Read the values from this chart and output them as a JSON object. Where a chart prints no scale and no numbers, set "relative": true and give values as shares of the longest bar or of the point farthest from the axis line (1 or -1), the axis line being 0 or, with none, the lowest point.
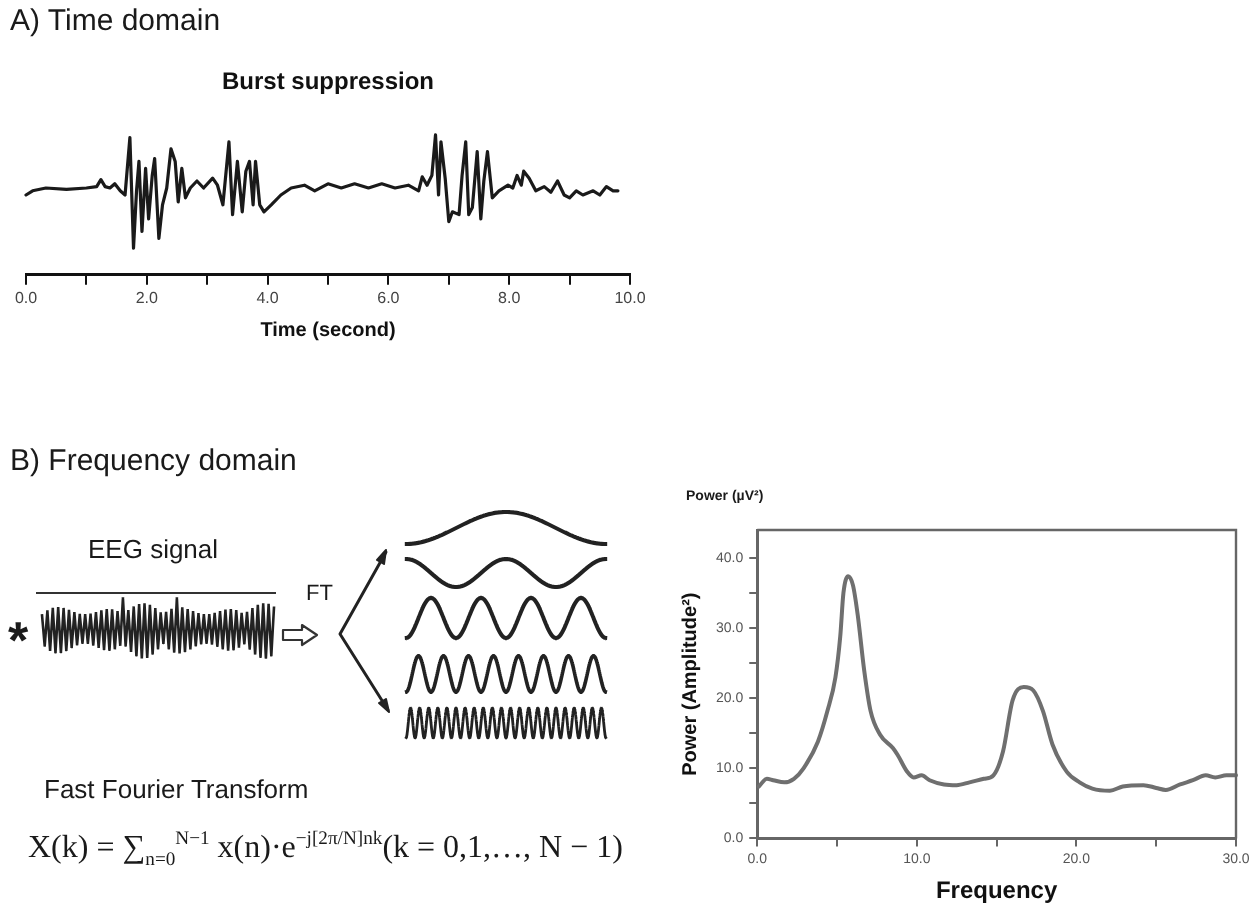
{
  "chart_data": [
    {
      "type": "line",
      "title": "Burst suppression",
      "xlabel": "Time (second)",
      "annotations": [
        "A) Time domain"
      ],
      "relative": true,
      "color": "#1a1a1a",
      "x": [
        0.0,
        0.11,
        0.33,
        0.67,
        1.0,
        1.17,
        1.24,
        1.31,
        1.39,
        1.47,
        1.56,
        1.64,
        1.72,
        1.78,
        1.83,
        1.87,
        1.92,
        1.98,
        2.03,
        2.09,
        2.13,
        2.2,
        2.26,
        2.33,
        2.4,
        2.47,
        2.52,
        2.58,
        2.64,
        2.72,
        2.83,
        2.94,
        3.09,
        3.17,
        3.26,
        3.36,
        3.42,
        3.5,
        3.58,
        3.64,
        3.7,
        3.76,
        3.8,
        3.87,
        3.94,
        4.06,
        4.22,
        4.39,
        4.61,
        4.78,
        5.0,
        5.22,
        5.44,
        5.67,
        5.89,
        6.11,
        6.33,
        6.5,
        6.56,
        6.64,
        6.72,
        6.78,
        6.83,
        6.87,
        6.94,
        7.0,
        7.06,
        7.17,
        7.22,
        7.28,
        7.33,
        7.39,
        7.47,
        7.53,
        7.58,
        7.64,
        7.72,
        7.83,
        7.98,
        8.06,
        8.13,
        8.2,
        8.24,
        8.33,
        8.44,
        8.58,
        8.69,
        8.8,
        8.91,
        9.0,
        9.11,
        9.22,
        9.39,
        9.5,
        9.61,
        9.72,
        9.8
      ],
      "values": [
        0.57,
        0.6,
        0.62,
        0.61,
        0.62,
        0.63,
        0.68,
        0.63,
        0.62,
        0.65,
        0.6,
        0.57,
        0.98,
        0.19,
        0.6,
        0.81,
        0.31,
        0.76,
        0.4,
        0.71,
        0.83,
        0.26,
        0.5,
        0.62,
        0.9,
        0.81,
        0.52,
        0.76,
        0.55,
        0.62,
        0.67,
        0.62,
        0.69,
        0.64,
        0.5,
        0.95,
        0.43,
        0.81,
        0.45,
        0.74,
        0.81,
        0.5,
        0.81,
        0.5,
        0.45,
        0.5,
        0.57,
        0.62,
        0.64,
        0.6,
        0.65,
        0.62,
        0.65,
        0.62,
        0.65,
        0.62,
        0.64,
        0.6,
        0.7,
        0.64,
        0.71,
        1.0,
        0.57,
        0.95,
        0.69,
        0.38,
        0.45,
        0.43,
        0.71,
        0.95,
        0.43,
        0.48,
        0.88,
        0.4,
        0.67,
        0.88,
        0.55,
        0.6,
        0.64,
        0.62,
        0.71,
        0.64,
        0.74,
        0.69,
        0.6,
        0.63,
        0.59,
        0.67,
        0.57,
        0.55,
        0.6,
        0.57,
        0.6,
        0.57,
        0.63,
        0.6,
        0.6
      ],
      "xlim": [
        0,
        10
      ],
      "xticks": [
        {
          "value": 0,
          "label": "0.0"
        },
        {
          "value": 1,
          "label": null
        },
        {
          "value": 2,
          "label": "2.0"
        },
        {
          "value": 3,
          "label": null
        },
        {
          "value": 4,
          "label": "4.0"
        },
        {
          "value": 5,
          "label": null
        },
        {
          "value": 6,
          "label": "6.0"
        },
        {
          "value": 7,
          "label": null
        },
        {
          "value": 8,
          "label": "8.0"
        },
        {
          "value": 9,
          "label": null
        },
        {
          "value": 10,
          "label": "10.0"
        }
      ]
    },
    {
      "type": "other",
      "annotations": [
        "B) Frequency domain",
        "EEG signal",
        "*",
        "FT",
        "Fast Fourier Transform",
        "X(k) = ∑$_{n=0}$$^{N−1}$ x(n)·e$^{−j[2π/N]nk}$(k = 0,1,…, N − 1)"
      ]
    },
    {
      "type": "line",
      "xlabel": "Frequency",
      "ylabel": "Power (Amplitude²)",
      "annotations": [
        "Power (µV²)"
      ],
      "color": "#6f6f6f",
      "x": [
        0.1,
        0.6,
        1.0,
        1.7,
        2.3,
        2.9,
        3.8,
        4.4,
        4.9,
        5.2,
        5.4,
        5.7,
        6.0,
        6.3,
        6.7,
        7.1,
        7.7,
        8.5,
        8.8,
        9.4,
        9.8,
        10.3,
        10.8,
        11.7,
        12.5,
        13.3,
        14.2,
        14.8,
        15.4,
        16.0,
        16.7,
        17.3,
        17.9,
        18.5,
        19.4,
        20.2,
        21.0,
        22.1,
        22.9,
        24.2,
        25.0,
        25.6,
        26.5,
        27.3,
        28.1,
        28.7,
        29.4,
        30.0
      ],
      "values": [
        7.4,
        8.5,
        8.3,
        8.0,
        8.5,
        10.0,
        13.8,
        18.2,
        23.0,
        28.8,
        35.0,
        37.4,
        36.1,
        31.8,
        24.0,
        18.2,
        14.8,
        12.9,
        11.9,
        9.5,
        8.7,
        9.0,
        8.3,
        7.7,
        7.6,
        8.0,
        8.5,
        9.0,
        12.4,
        19.7,
        21.6,
        21.1,
        18.2,
        13.4,
        9.5,
        8.0,
        7.1,
        6.8,
        7.4,
        7.6,
        7.2,
        6.9,
        7.7,
        8.3,
        9.0,
        8.7,
        9.0,
        9.0
      ],
      "xlim": [
        0,
        30
      ],
      "xticks": [
        {
          "value": 0,
          "label": "0.0"
        },
        {
          "value": 5,
          "label": null
        },
        {
          "value": 10,
          "label": "10.0"
        },
        {
          "value": 15,
          "label": null
        },
        {
          "value": 20,
          "label": "20.0"
        },
        {
          "value": 25,
          "label": null
        },
        {
          "value": 30,
          "label": "30.0"
        }
      ],
      "ylim": [
        0,
        44
      ],
      "yticks": [
        {
          "value": 0,
          "label": "0.0"
        },
        {
          "value": 5,
          "label": null
        },
        {
          "value": 10,
          "label": "10.0"
        },
        {
          "value": 15,
          "label": null
        },
        {
          "value": 20,
          "label": "20.0"
        },
        {
          "value": 25,
          "label": null
        },
        {
          "value": 30,
          "label": "30.0"
        },
        {
          "value": 35,
          "label": null
        },
        {
          "value": 40,
          "label": "40.0"
        }
      ]
    }
  ]
}
